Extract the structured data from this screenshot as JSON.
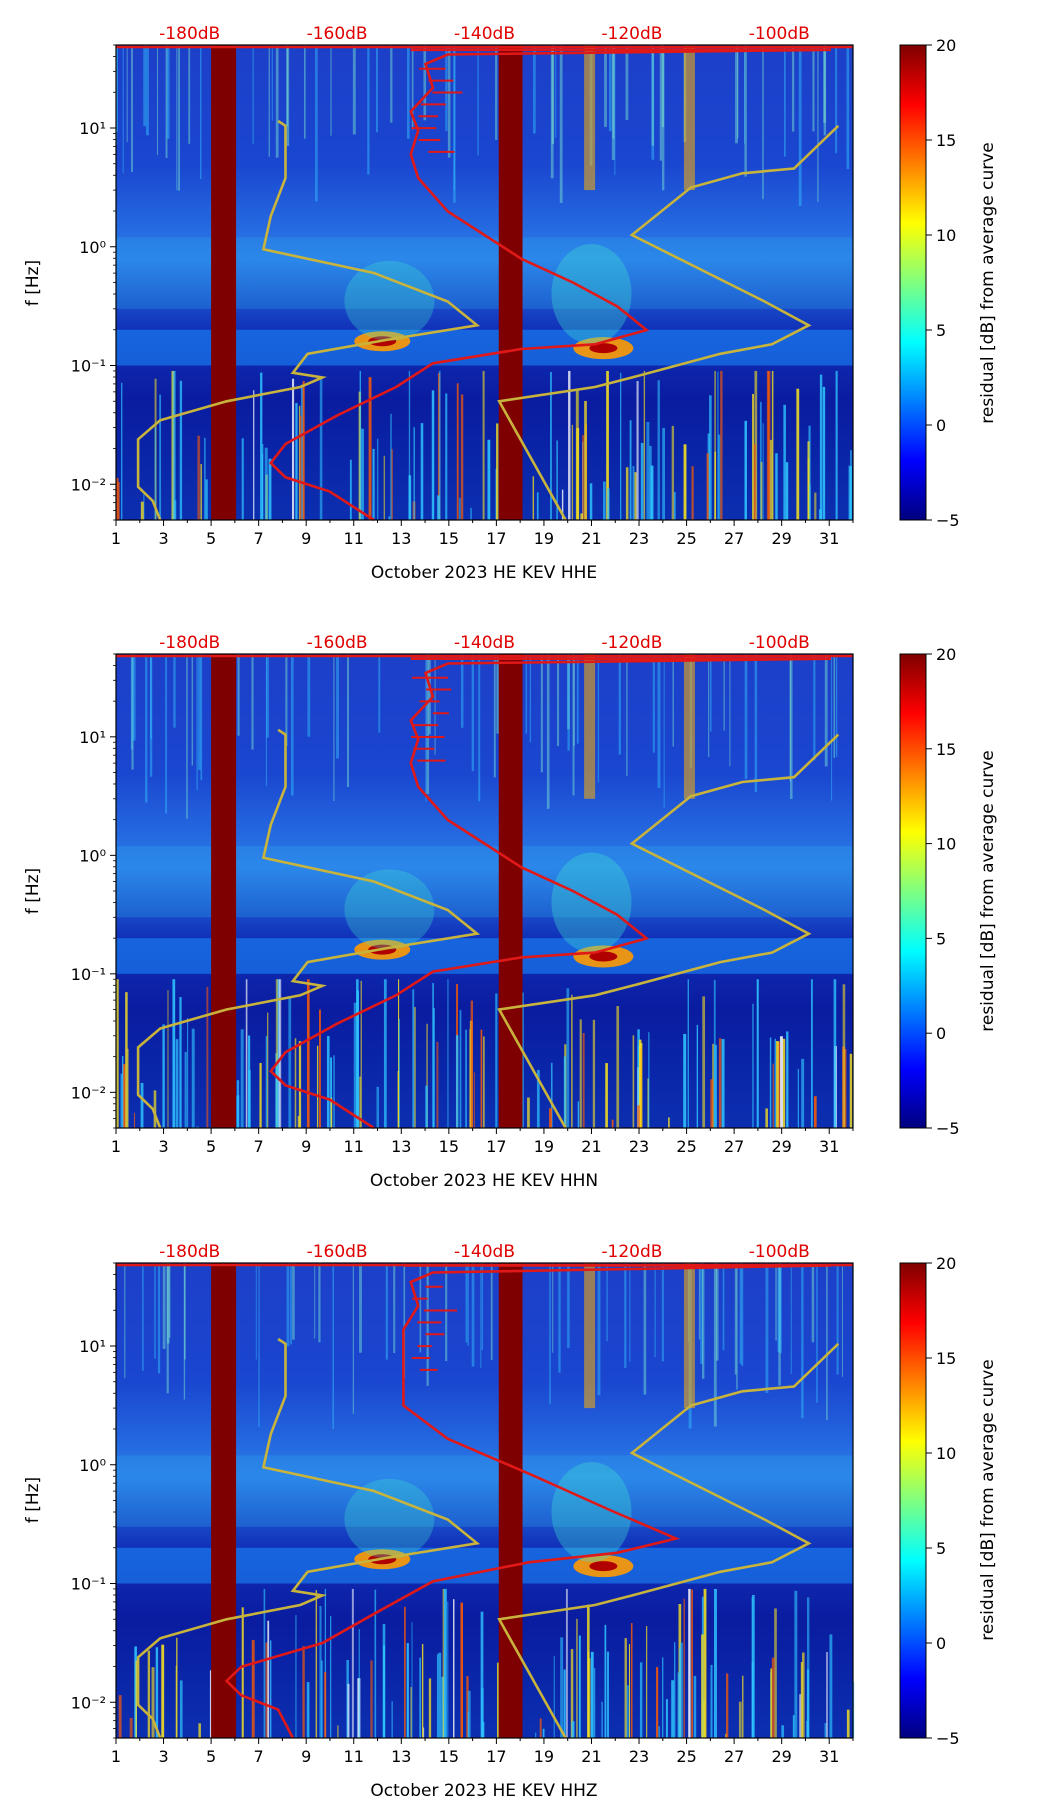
{
  "chart_data": [
    {
      "type": "heatmap",
      "title": "",
      "xlabel": "October 2023 HE KEV  HHE",
      "ylabel": "f [Hz]",
      "colorbar_label": "residual [dB] from average curve",
      "x_ticks": [
        "1",
        "3",
        "5",
        "7",
        "9",
        "11",
        "13",
        "15",
        "17",
        "19",
        "21",
        "23",
        "25",
        "27",
        "29",
        "31"
      ],
      "y_ticks": [
        "10⁻²",
        "10⁻¹",
        "10⁰",
        "10¹"
      ],
      "colorbar_ticks": [
        "−5",
        "0",
        "5",
        "10",
        "15",
        "20"
      ],
      "top_db_labels": [
        "-180dB",
        "-160dB",
        "-140dB",
        "-120dB",
        "-100dB"
      ],
      "xlim": [
        1,
        32
      ],
      "ylim": [
        0.005,
        50
      ],
      "clim": [
        -5,
        20
      ]
    },
    {
      "type": "heatmap",
      "title": "",
      "xlabel": "October 2023 HE KEV  HHN",
      "ylabel": "f [Hz]",
      "colorbar_label": "residual [dB] from average curve",
      "x_ticks": [
        "1",
        "3",
        "5",
        "7",
        "9",
        "11",
        "13",
        "15",
        "17",
        "19",
        "21",
        "23",
        "25",
        "27",
        "29",
        "31"
      ],
      "y_ticks": [
        "10⁻²",
        "10⁻¹",
        "10⁰",
        "10¹"
      ],
      "colorbar_ticks": [
        "−5",
        "0",
        "5",
        "10",
        "15",
        "20"
      ],
      "top_db_labels": [
        "-180dB",
        "-160dB",
        "-140dB",
        "-120dB",
        "-100dB"
      ],
      "xlim": [
        1,
        32
      ],
      "ylim": [
        0.005,
        50
      ],
      "clim": [
        -5,
        20
      ]
    },
    {
      "type": "heatmap",
      "title": "",
      "xlabel": "October 2023 HE KEV  HHZ",
      "ylabel": "f [Hz]",
      "colorbar_label": "residual [dB] from average curve",
      "x_ticks": [
        "1",
        "3",
        "5",
        "7",
        "9",
        "11",
        "13",
        "15",
        "17",
        "19",
        "21",
        "23",
        "25",
        "27",
        "29",
        "31"
      ],
      "y_ticks": [
        "10⁻²",
        "10⁻¹",
        "10⁰",
        "10¹"
      ],
      "colorbar_ticks": [
        "−5",
        "0",
        "5",
        "10",
        "15",
        "20"
      ],
      "top_db_labels": [
        "-180dB",
        "-160dB",
        "-140dB",
        "-120dB",
        "-100dB"
      ],
      "xlim": [
        1,
        32
      ],
      "ylim": [
        0.005,
        50
      ],
      "clim": [
        -5,
        20
      ]
    }
  ],
  "colors": {
    "background": "#00007f",
    "noise_mid": "#1f5fd8",
    "gap_band": "#7f0000",
    "red_curve": "#e01818",
    "yellow_curve": "#c8b43c",
    "db_label": "#e00000"
  }
}
